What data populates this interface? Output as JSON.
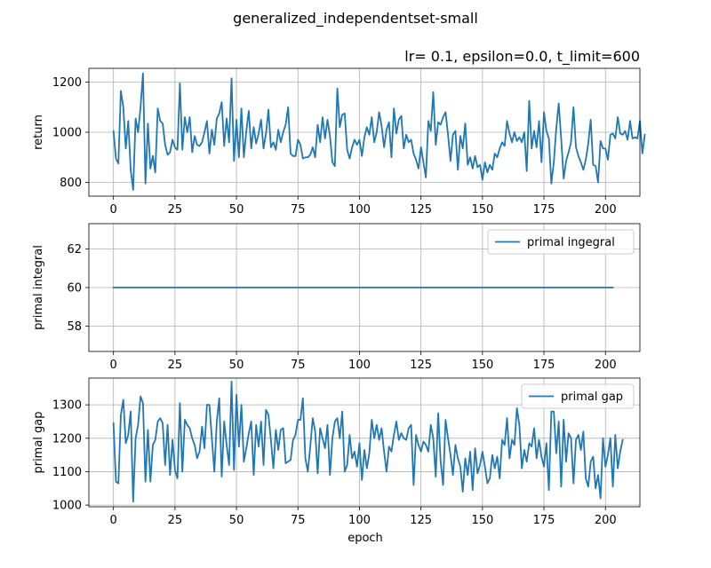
{
  "figure": {
    "suptitle": "generalized_independentset-small",
    "xlabel": "epoch"
  },
  "chart_data": [
    {
      "type": "line",
      "title": "lr= 0.1, epsilon=0.0, t_limit=600",
      "xlabel": "",
      "ylabel": "return",
      "xlim": [
        -10,
        214
      ],
      "ylim": [
        745,
        1255
      ],
      "xticks": [
        0,
        25,
        50,
        75,
        100,
        125,
        150,
        175,
        200
      ],
      "xtick_labels": [
        "0",
        "25",
        "50",
        "75",
        "100",
        "125",
        "150",
        "175",
        "200"
      ],
      "yticks": [
        800,
        1000,
        1200
      ],
      "ytick_labels": [
        "800",
        "1000",
        "1200"
      ],
      "grid": true,
      "legend": null,
      "series": [
        {
          "name": "return",
          "color": "#1f77b4",
          "x_start": 0,
          "x_step": 1,
          "values": [
            1005,
            895,
            875,
            1165,
            1100,
            935,
            1045,
            850,
            770,
            1055,
            1000,
            1100,
            1235,
            795,
            1035,
            855,
            905,
            840,
            1095,
            1045,
            1035,
            950,
            910,
            920,
            970,
            940,
            930,
            1195,
            930,
            1060,
            1000,
            1060,
            920,
            985,
            950,
            945,
            960,
            1000,
            1045,
            915,
            1010,
            950,
            1055,
            1075,
            1120,
            945,
            1055,
            960,
            1215,
            885,
            1050,
            900,
            1095,
            900,
            1005,
            1085,
            935,
            1020,
            955,
            995,
            1050,
            935,
            995,
            1090,
            940,
            960,
            930,
            1010,
            960,
            1000,
            1030,
            1100,
            915,
            905,
            905,
            970,
            950,
            895,
            900,
            900,
            910,
            940,
            900,
            1030,
            960,
            1060,
            975,
            1050,
            985,
            880,
            865,
            1175,
            1020,
            1070,
            1075,
            930,
            895,
            940,
            970,
            950,
            970,
            905,
            980,
            1020,
            990,
            1060,
            960,
            1000,
            1080,
            1025,
            940,
            1010,
            1040,
            900,
            1095,
            995,
            1050,
            1065,
            935,
            990,
            960,
            970,
            915,
            890,
            855,
            940,
            880,
            820,
            1045,
            1005,
            1160,
            950,
            1040,
            1030,
            1060,
            1080,
            990,
            885,
            990,
            1005,
            850,
            985,
            935,
            1035,
            870,
            900,
            855,
            905,
            860,
            870,
            810,
            880,
            840,
            870,
            850,
            915,
            900,
            935,
            960,
            945,
            1045,
            995,
            960,
            1000,
            965,
            980,
            960,
            1000,
            845,
            1125,
            935,
            1005,
            940,
            1045,
            880,
            1080,
            1005,
            975,
            795,
            880,
            1015,
            1115,
            975,
            815,
            885,
            920,
            960,
            1100,
            940,
            905,
            880,
            850,
            890,
            955,
            1050,
            870,
            865,
            800,
            965,
            935,
            935,
            890,
            990,
            995,
            975,
            1060,
            995,
            990,
            1005,
            970,
            1045,
            975,
            980,
            975,
            1045,
            915,
            990
          ]
        }
      ]
    },
    {
      "type": "line",
      "title": "",
      "xlabel": "",
      "ylabel": "primal integral",
      "xlim": [
        -10,
        214
      ],
      "ylim": [
        56.7,
        63.3
      ],
      "xticks": [
        0,
        25,
        50,
        75,
        100,
        125,
        150,
        175,
        200
      ],
      "xtick_labels": [
        "0",
        "25",
        "50",
        "75",
        "100",
        "125",
        "150",
        "175",
        "200"
      ],
      "yticks": [
        58,
        60,
        62
      ],
      "ytick_labels": [
        "58",
        "60",
        "62"
      ],
      "grid": true,
      "legend": "top-right",
      "series": [
        {
          "name": "primal ingegral",
          "color": "#1f77b4",
          "x_start": 0,
          "x_end": 203,
          "constant": 60
        }
      ]
    },
    {
      "type": "line",
      "title": "",
      "xlabel": "epoch",
      "ylabel": "primal gap",
      "xlim": [
        -10,
        214
      ],
      "ylim": [
        995,
        1380
      ],
      "xticks": [
        0,
        25,
        50,
        75,
        100,
        125,
        150,
        175,
        200
      ],
      "xtick_labels": [
        "0",
        "25",
        "50",
        "75",
        "100",
        "125",
        "150",
        "175",
        "200"
      ],
      "yticks": [
        1000,
        1100,
        1200,
        1300
      ],
      "ytick_labels": [
        "1000",
        "1100",
        "1200",
        "1300"
      ],
      "grid": true,
      "legend": "top-right",
      "series": [
        {
          "name": "primal gap",
          "color": "#1f77b4",
          "x_start": 0,
          "x_step": 1,
          "values": [
            1245,
            1070,
            1065,
            1270,
            1315,
            1185,
            1210,
            1280,
            1010,
            1200,
            1240,
            1325,
            1305,
            1070,
            1225,
            1070,
            1180,
            1195,
            1250,
            1260,
            1245,
            1120,
            1240,
            1090,
            1195,
            1105,
            1080,
            1305,
            1100,
            1255,
            1240,
            1230,
            1200,
            1180,
            1140,
            1160,
            1235,
            1170,
            1300,
            1300,
            1200,
            1100,
            1250,
            1320,
            1085,
            1250,
            1180,
            1120,
            1370,
            1105,
            1330,
            1175,
            1300,
            1130,
            1170,
            1215,
            1250,
            1090,
            1240,
            1175,
            1250,
            1120,
            1285,
            1270,
            1195,
            1110,
            1225,
            1165,
            1225,
            1230,
            1125,
            1130,
            1135,
            1195,
            1210,
            1255,
            1255,
            1320,
            1140,
            1100,
            1175,
            1260,
            1220,
            1095,
            1230,
            1200,
            1170,
            1240,
            1090,
            1200,
            1250,
            1260,
            1200,
            1280,
            1100,
            1120,
            1210,
            1140,
            1160,
            1115,
            1185,
            1075,
            1165,
            1110,
            1155,
            1255,
            1200,
            1240,
            1195,
            1230,
            1160,
            1100,
            1175,
            1160,
            1210,
            1250,
            1195,
            1215,
            1200,
            1195,
            1230,
            1240,
            1060,
            1210,
            1180,
            1160,
            1190,
            1180,
            1160,
            1240,
            1200,
            1085,
            1275,
            1130,
            1060,
            1255,
            1200,
            1150,
            1090,
            1180,
            1140,
            1115,
            1040,
            1140,
            1090,
            1160,
            1045,
            1170,
            1095,
            1120,
            1160,
            1115,
            1065,
            1080,
            1150,
            1110,
            1145,
            1080,
            1195,
            1180,
            1260,
            1140,
            1195,
            1180,
            1290,
            1240,
            1110,
            1165,
            1130,
            1185,
            1175,
            1230,
            1140,
            1195,
            1145,
            1115,
            1185,
            1045,
            1280,
            1280,
            1155,
            1250,
            1055,
            1255,
            1130,
            1215,
            1200,
            1065,
            1195,
            1210,
            1165,
            1220,
            1080,
            1055,
            1130,
            1145,
            1050,
            1090,
            1020,
            1200,
            1115,
            1150,
            1200,
            1055,
            1210,
            1110,
            1160,
            1195
          ]
        }
      ]
    }
  ]
}
